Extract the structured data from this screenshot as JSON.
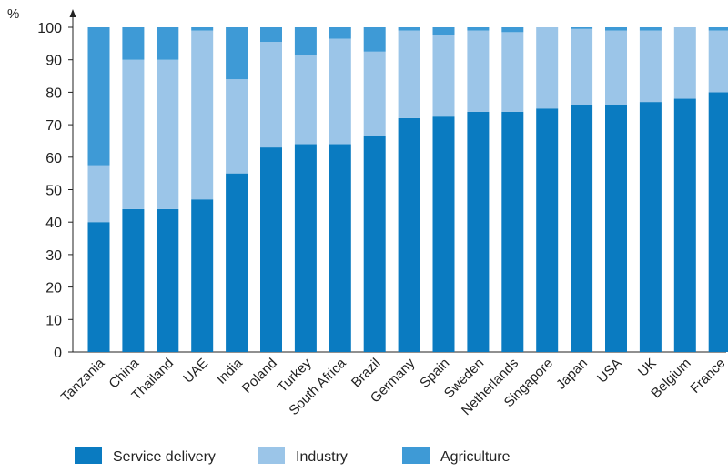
{
  "chart_data": {
    "type": "bar",
    "stacked": true,
    "unit_label": "%",
    "ylim": [
      0,
      100
    ],
    "yticks": [
      0,
      10,
      20,
      30,
      40,
      50,
      60,
      70,
      80,
      90,
      100
    ],
    "grid": false,
    "legend_position": "bottom",
    "categories": [
      "Tanzania",
      "China",
      "Thailand",
      "UAE",
      "India",
      "Poland",
      "Turkey",
      "South Africa",
      "Brazil",
      "Germany",
      "Spain",
      "Sweden",
      "Netherlands",
      "Singapore",
      "Japan",
      "USA",
      "UK",
      "Belgium",
      "France"
    ],
    "series": [
      {
        "name": "Service delivery",
        "color": "#0a7bc1",
        "values": [
          40,
          44,
          44,
          47,
          55,
          63,
          64,
          64,
          66.5,
          72,
          72.5,
          74,
          74,
          75,
          76,
          76,
          77,
          78,
          80
        ]
      },
      {
        "name": "Industry",
        "color": "#9bc5e8",
        "values": [
          17.5,
          46,
          46,
          52,
          29,
          32.5,
          27.5,
          32.5,
          26,
          27,
          25,
          25,
          24.5,
          25,
          23.5,
          23,
          22,
          22,
          19
        ]
      },
      {
        "name": "Agriculture",
        "color": "#3e9ad6",
        "values": [
          42.5,
          10,
          10,
          1,
          16,
          4.5,
          8.5,
          3.5,
          7.5,
          1,
          2.5,
          1,
          1.5,
          0,
          0.5,
          1,
          1,
          0,
          1
        ]
      }
    ]
  }
}
